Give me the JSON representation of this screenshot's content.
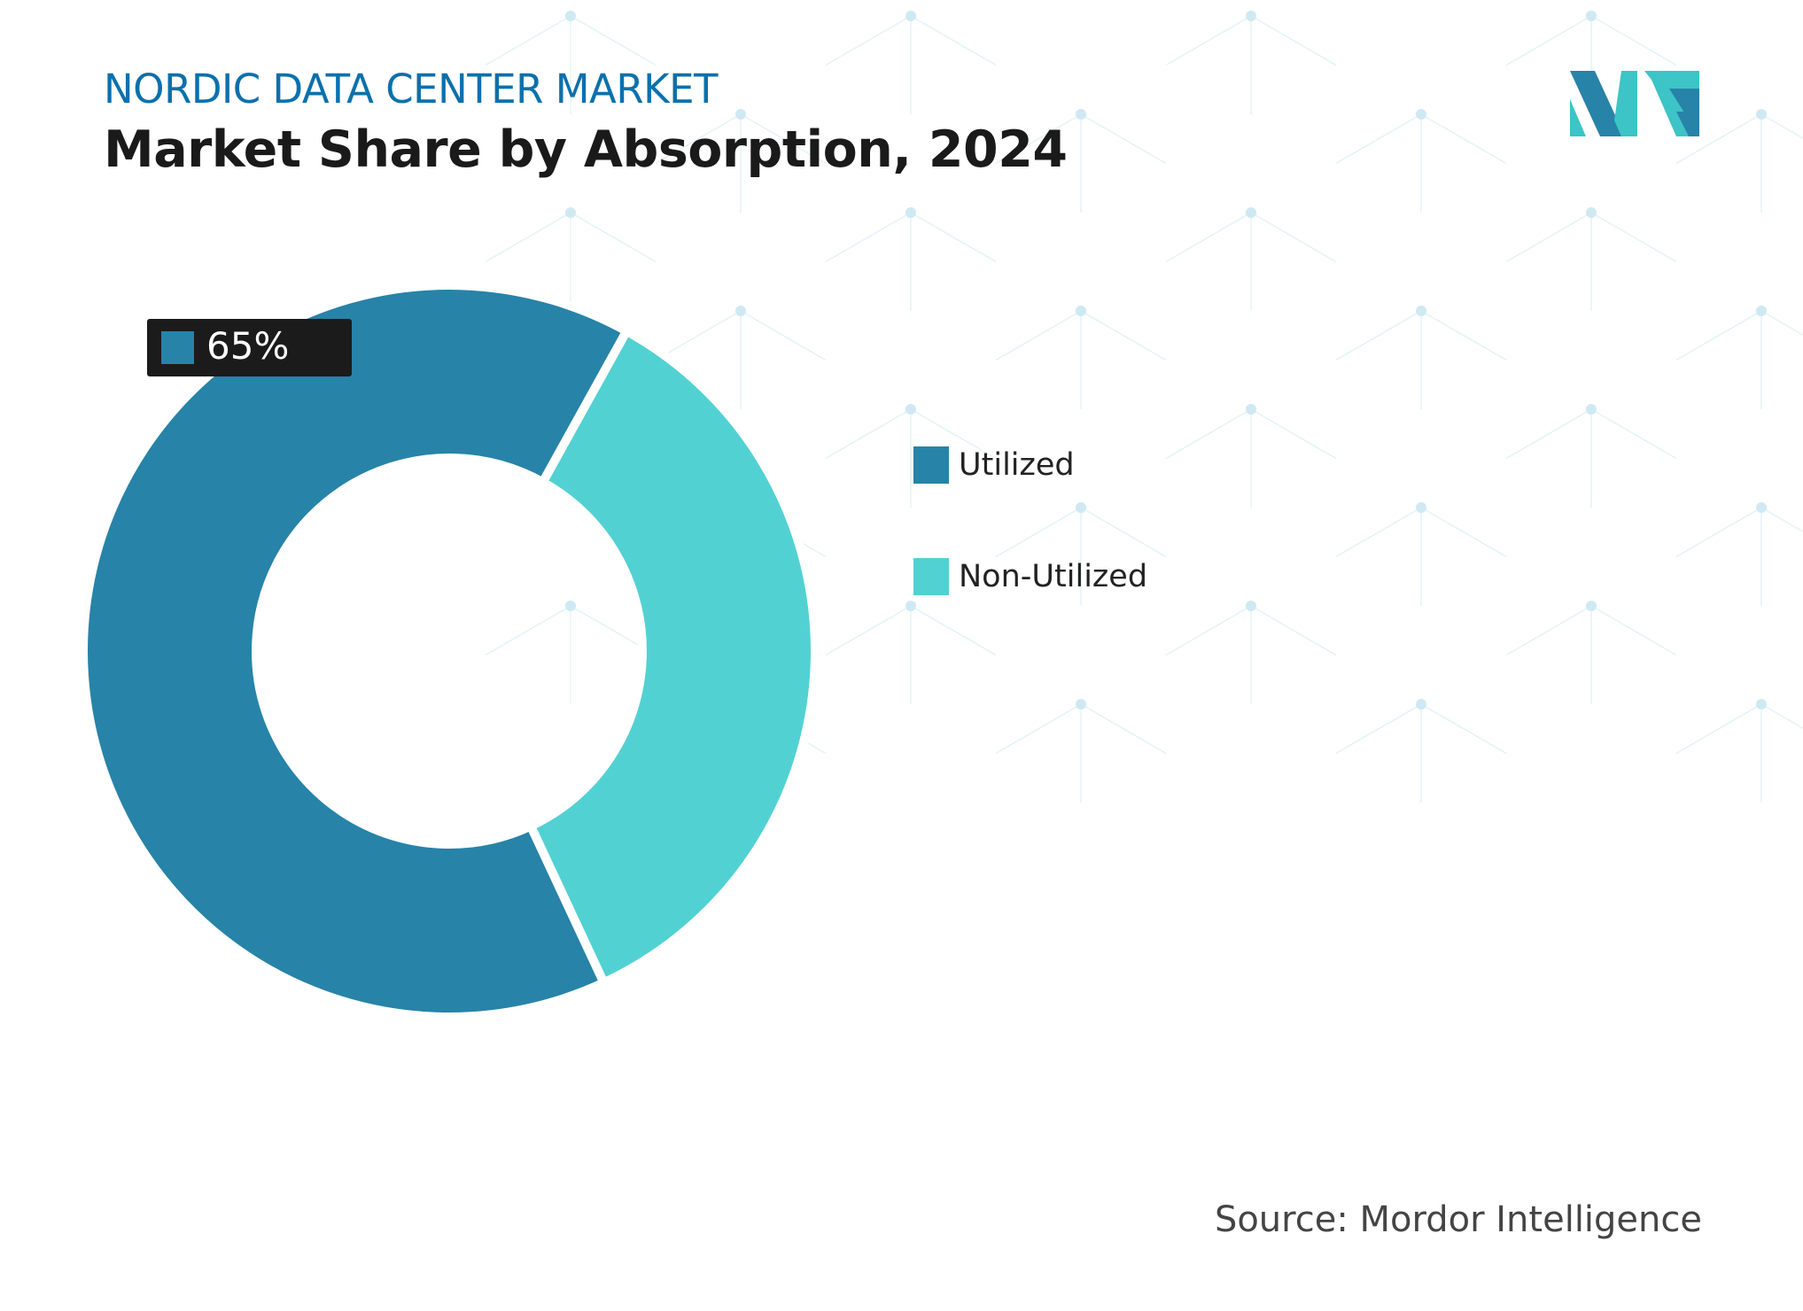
{
  "header": {
    "subtitle": "NORDIC DATA CENTER MARKET",
    "title": "Market Share by Absorption, 2024"
  },
  "chart_data": {
    "type": "pie",
    "variant": "donut",
    "categories": [
      "Utilized",
      "Non-Utilized"
    ],
    "values": [
      65,
      35
    ],
    "colors": [
      "#2783a8",
      "#52d1d3"
    ],
    "data_labels": [
      {
        "category": "Utilized",
        "text": "65%"
      }
    ],
    "legend": {
      "position": "right",
      "entries": [
        "Utilized",
        "Non-Utilized"
      ]
    }
  },
  "source": "Source: Mordor Intelligence",
  "colors": {
    "subtitle": "#0b70ad",
    "title": "#1a1a1a",
    "label_bg": "#1b1b1b",
    "logo_dark": "#2783a8",
    "logo_light": "#3cc4c6"
  }
}
